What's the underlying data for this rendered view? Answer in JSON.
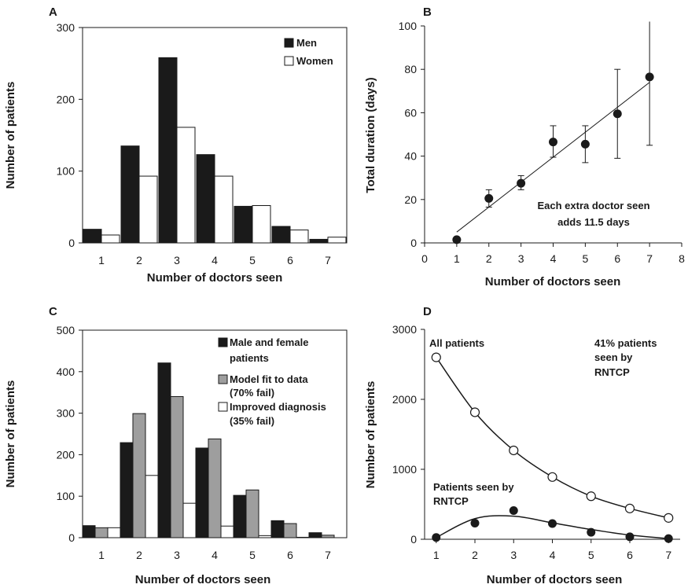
{
  "colors": {
    "black": "#1a1a1a",
    "grey": "#9e9e9e",
    "white": "#ffffff"
  },
  "chart_data": [
    {
      "panel": "A",
      "type": "bar",
      "categories": [
        "1",
        "2",
        "3",
        "4",
        "5",
        "6",
        "7"
      ],
      "series": [
        {
          "name": "Men",
          "color": "#1a1a1a",
          "values": [
            19,
            135,
            258,
            123,
            51,
            23,
            5
          ]
        },
        {
          "name": "Women",
          "color": "#ffffff",
          "values": [
            11,
            93,
            161,
            93,
            52,
            18,
            8
          ]
        }
      ],
      "xlabel": "Number of doctors seen",
      "ylabel": "Number of patients",
      "ylim": [
        0,
        300
      ],
      "yticks": [
        "0",
        "100",
        "200",
        "300"
      ],
      "legend": "top-right"
    },
    {
      "panel": "B",
      "type": "scatter",
      "x": [
        1,
        2,
        3,
        4,
        5,
        6,
        7
      ],
      "y": [
        1.5,
        20.5,
        27.5,
        46.5,
        45.5,
        59.5,
        76.5
      ],
      "err_low": [
        1.5,
        16.5,
        24.5,
        39.5,
        37,
        39,
        45
      ],
      "err_high": [
        1.5,
        24.5,
        31,
        54,
        54,
        80,
        102
      ],
      "fit": {
        "x": [
          1,
          7
        ],
        "y": [
          5,
          74
        ]
      },
      "annotation": [
        "Each extra doctor seen",
        "adds 11.5 days"
      ],
      "xlabel": "Number of doctors seen",
      "ylabel": "Total duration (days)",
      "xlim": [
        0,
        8
      ],
      "ylim": [
        0,
        100
      ],
      "xticks": [
        "0",
        "1",
        "2",
        "3",
        "4",
        "5",
        "6",
        "7",
        "8"
      ],
      "yticks": [
        "0",
        "20",
        "40",
        "60",
        "80",
        "100"
      ]
    },
    {
      "panel": "C",
      "type": "bar",
      "categories": [
        "1",
        "2",
        "3",
        "4",
        "5",
        "6",
        "7"
      ],
      "series": [
        {
          "name": "Male and female patients",
          "legend_lines": [
            "Male and female",
            "patients"
          ],
          "color": "#1a1a1a",
          "values": [
            29,
            229,
            421,
            216,
            102,
            41,
            12
          ]
        },
        {
          "name": "Model fit to data (70% fail)",
          "legend_lines": [
            "Model fit to data",
            "(70% fail)"
          ],
          "color": "#9e9e9e",
          "values": [
            24,
            299,
            340,
            238,
            115,
            34,
            6
          ]
        },
        {
          "name": "Improved diagnosis (35% fail)",
          "legend_lines": [
            "Improved diagnosis",
            "(35% fail)"
          ],
          "color": "#ffffff",
          "values": [
            24,
            150,
            83,
            28,
            5,
            1,
            0
          ]
        }
      ],
      "xlabel": "Number of doctors seen",
      "ylabel": "Number of patients",
      "ylim": [
        0,
        500
      ],
      "yticks": [
        "0",
        "100",
        "200",
        "300",
        "400",
        "500"
      ],
      "legend": "top-right"
    },
    {
      "panel": "D",
      "type": "line",
      "x": [
        1,
        2,
        3,
        4,
        5,
        6,
        7
      ],
      "series": [
        {
          "name": "All patients",
          "marker": "open-circle",
          "values": [
            2600,
            1815,
            1270,
            890,
            615,
            440,
            305
          ]
        },
        {
          "name": "Patients seen by RNTCP",
          "marker": "filled-circle",
          "values": [
            25,
            230,
            410,
            225,
            100,
            35,
            10
          ],
          "fit": [
            25,
            295,
            330,
            235,
            140,
            60,
            10
          ]
        }
      ],
      "annotations": {
        "all": "All patients",
        "rntcp": [
          "Patients seen by",
          "RNTCP"
        ],
        "pct": [
          "41% patients",
          "seen by",
          "RNTCP"
        ]
      },
      "xlabel": "Number of doctors seen",
      "ylabel": "Number of patients",
      "xlim": [
        0.7,
        7.3
      ],
      "ylim": [
        0,
        3000
      ],
      "xticks": [
        "1",
        "2",
        "3",
        "4",
        "5",
        "6",
        "7"
      ],
      "yticks": [
        "0",
        "1000",
        "2000",
        "3000"
      ]
    }
  ]
}
